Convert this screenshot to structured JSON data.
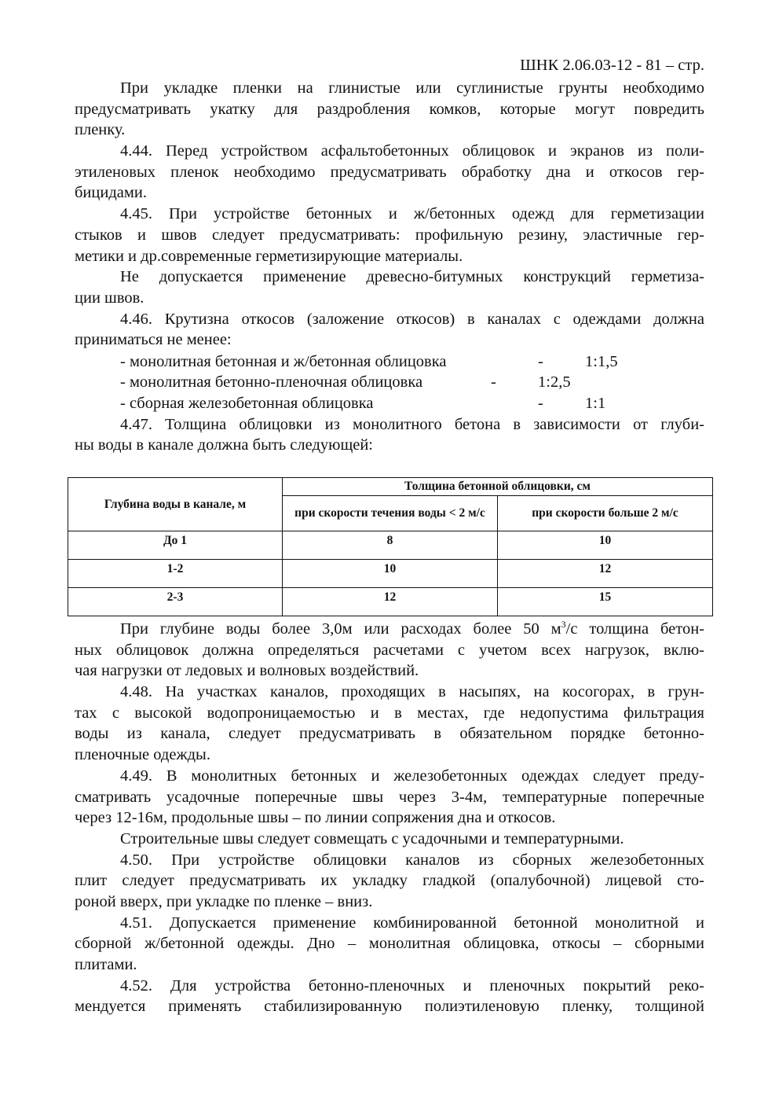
{
  "header": "ШНК 2.06.03-12 - 81 – стр.",
  "block1": [
    {
      "lines": [
        "При укладке пленки на глинистые или суглинистые грунты необходимо",
        "предусматривать укатку для раздробления комков, которые могут повредить",
        "пленку."
      ]
    },
    {
      "lines": [
        "4.44. Перед устройством асфальтобетонных облицовок и экранов из поли-",
        "этиленовых пленок необходимо предусматривать обработку дна и откосов гер-",
        "бицидами."
      ]
    },
    {
      "lines": [
        "4.45. При устройстве бетонных и ж/бетонных одежд для герметизации",
        "стыков и швов следует предусматривать: профильную резину, эластичные гер-",
        "метики и др.современные герметизирующие материалы."
      ]
    },
    {
      "lines": [
        "Не допускается применение древесно-битумных конструкций герметиза-",
        "ции швов."
      ]
    },
    {
      "lines": [
        "4.46. Крутизна откосов (заложение откосов) в каналах с одеждами должна",
        "приниматься не менее:"
      ]
    }
  ],
  "slope_list": [
    {
      "text": "- монолитная бетонная и ж/бетонная облицовка",
      "dash": "-",
      "value": "1:1,5"
    },
    {
      "text": "- монолитная бетонно-пленочная облицовка",
      "dash": "-",
      "value": "1:2,5"
    },
    {
      "text": "- сборная железобетонная облицовка",
      "dash": "-",
      "value": "1:1"
    }
  ],
  "block1b": [
    {
      "lines": [
        "4.47. Толщина облицовки из монолитного бетона в зависимости от глуби-",
        "ны воды в канале должна быть следующей:"
      ]
    }
  ],
  "table": {
    "col1_header": "Глубина воды в канале, м",
    "group_header": "Толщина бетонной облицовки, см",
    "col2_header": "при скорости течения воды < 2 м/с",
    "col3_header": "при скорости больше  2 м/с",
    "rows": [
      [
        "До 1",
        "8",
        "10"
      ],
      [
        "1-2",
        "10",
        "12"
      ],
      [
        "2-3",
        "12",
        "15"
      ]
    ]
  },
  "p_after_table": {
    "line1_a": "При глубине воды более 3,0м или расходах более 50 м",
    "line1_sup": "3",
    "line1_b": "/с толщина бетон-",
    "lines": [
      "ных облицовок должна определяться расчетами с учетом всех нагрузок, вклю-",
      "чая нагрузки от ледовых и волновых воздействий."
    ]
  },
  "block2": [
    {
      "lines": [
        "4.48. На участках каналов, проходящих в насыпях, на косогорах, в грун-",
        "тах с высокой водопроницаемостью и в местах, где недопустима фильтрация",
        "воды из канала, следует предусматривать в обязательном порядке бетонно-",
        "пленочные одежды."
      ]
    },
    {
      "lines": [
        "4.49. В монолитных бетонных и железобетонных одеждах следует преду-",
        "сматривать усадочные поперечные швы через 3-4м, температурные поперечные",
        "через 12-16м, продольные швы – по линии сопряжения дна и откосов."
      ]
    },
    {
      "lines": [
        "Строительные швы следует совмещать с усадочными и температурными."
      ]
    },
    {
      "lines": [
        "4.50. При устройстве облицовки каналов из сборных железобетонных",
        "плит следует предусматривать их укладку гладкой (опалубочной) лицевой сто-",
        "роной вверх, при укладке по пленке – вниз."
      ]
    },
    {
      "lines": [
        "4.51. Допускается применение комбинированной бетонной монолитной и",
        "сборной ж/бетонной одежды. Дно – монолитная облицовка, откосы – сборными",
        "плитами."
      ]
    },
    {
      "lines": [
        "4.52. Для устройства бетонно-пленочных и пленочных покрытий реко-",
        "мендуется применять стабилизированную полиэтиленовую пленку, толщиной"
      ],
      "continues": true
    }
  ]
}
